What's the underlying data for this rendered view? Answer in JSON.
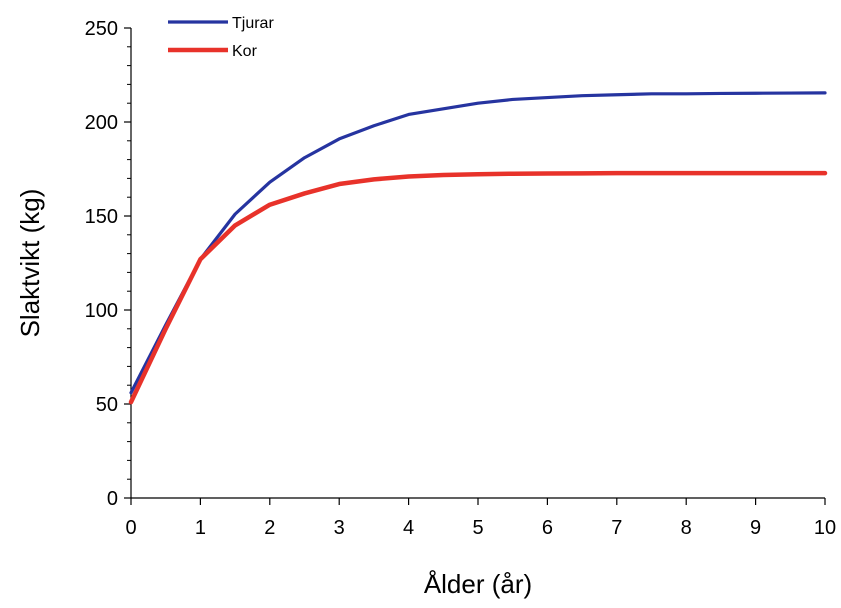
{
  "chart_data": {
    "type": "line",
    "title": "",
    "xlabel": "Ålder (år)",
    "ylabel": "Slaktvikt (kg)",
    "xlim": [
      0,
      10
    ],
    "ylim": [
      0,
      250
    ],
    "xticks": [
      "0",
      "1",
      "2",
      "3",
      "4",
      "5",
      "6",
      "7",
      "8",
      "9",
      "10"
    ],
    "yticks": [
      "0",
      "50",
      "100",
      "150",
      "200",
      "250"
    ],
    "grid": false,
    "legend_position": "top-left",
    "series": [
      {
        "name": "Tjurar",
        "color": "#2634a0",
        "x": [
          0,
          0.5,
          1,
          1.5,
          2,
          2.5,
          3,
          3.5,
          4,
          4.5,
          5,
          5.5,
          6,
          6.5,
          7,
          7.5,
          8,
          8.5,
          9,
          9.5,
          10
        ],
        "y": [
          56,
          92,
          127,
          151,
          168,
          181,
          191,
          198,
          204,
          207,
          210,
          212,
          213,
          214,
          214.5,
          215,
          215,
          215.2,
          215.3,
          215.4,
          215.5
        ]
      },
      {
        "name": "Kor",
        "color": "#e8322a",
        "x": [
          0,
          0.5,
          1,
          1.5,
          2,
          2.5,
          3,
          3.5,
          4,
          4.5,
          5,
          5.5,
          6,
          6.5,
          7,
          7.5,
          8,
          8.5,
          9,
          9.5,
          10
        ],
        "y": [
          51,
          90,
          127,
          145,
          156,
          162,
          167,
          169.5,
          171,
          171.8,
          172.2,
          172.5,
          172.6,
          172.7,
          172.8,
          172.8,
          172.8,
          172.8,
          172.8,
          172.8,
          172.8
        ]
      }
    ]
  }
}
